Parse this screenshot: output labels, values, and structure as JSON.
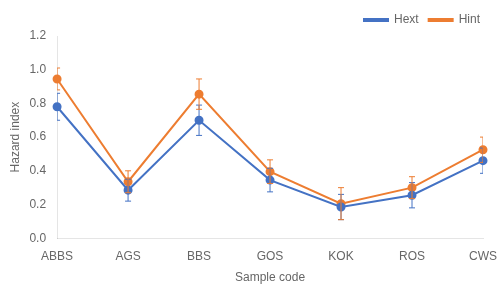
{
  "chart_data": {
    "type": "line",
    "categories": [
      "ABBS",
      "AGS",
      "BBS",
      "GOS",
      "KOK",
      "ROS",
      "CWS"
    ],
    "series": [
      {
        "name": "Hext",
        "color": "#4472C4",
        "marker": "circle",
        "values": [
          0.78,
          0.285,
          0.7,
          0.345,
          0.185,
          0.255,
          0.46
        ],
        "errors": [
          0.08,
          0.065,
          0.09,
          0.07,
          0.075,
          0.075,
          0.075
        ]
      },
      {
        "name": "Hint",
        "color": "#ED7D31",
        "marker": "circle",
        "values": [
          0.945,
          0.335,
          0.855,
          0.395,
          0.205,
          0.3,
          0.525
        ],
        "errors": [
          0.065,
          0.065,
          0.09,
          0.07,
          0.095,
          0.065,
          0.075
        ]
      }
    ],
    "xlabel": "Sample code",
    "ylabel": "Hazard index",
    "ylim": [
      0,
      1.2
    ],
    "yticks": [
      {
        "value": 0,
        "label": "0.0"
      },
      0.2,
      0.4,
      0.6,
      0.8,
      {
        "value": 1,
        "label": "1.0"
      },
      1.2
    ],
    "grid": false,
    "legend": "upper right"
  }
}
